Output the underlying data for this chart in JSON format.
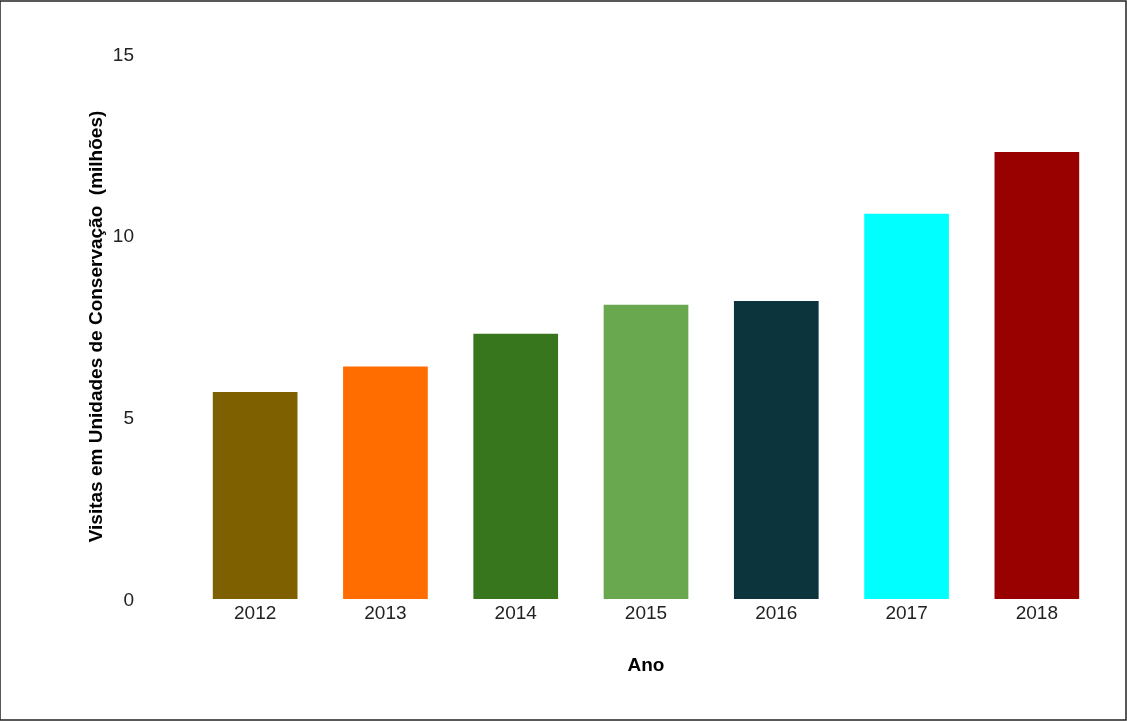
{
  "chart_data": {
    "type": "bar",
    "xlabel": "Ano",
    "ylabel": "Visitas em Unidades de Conservação  (milhões)",
    "categories": [
      "2012",
      "2013",
      "2014",
      "2015",
      "2016",
      "2017",
      "2018"
    ],
    "values": [
      5.7,
      6.4,
      7.3,
      8.1,
      8.2,
      10.6,
      12.3
    ],
    "colors": [
      "#7f6000",
      "#ff6d01",
      "#38761d",
      "#6aa84f",
      "#0c343d",
      "#00ffff",
      "#990000"
    ],
    "ylim": [
      0,
      15
    ],
    "yticks": [
      0,
      5,
      10,
      15
    ],
    "legend": false
  }
}
